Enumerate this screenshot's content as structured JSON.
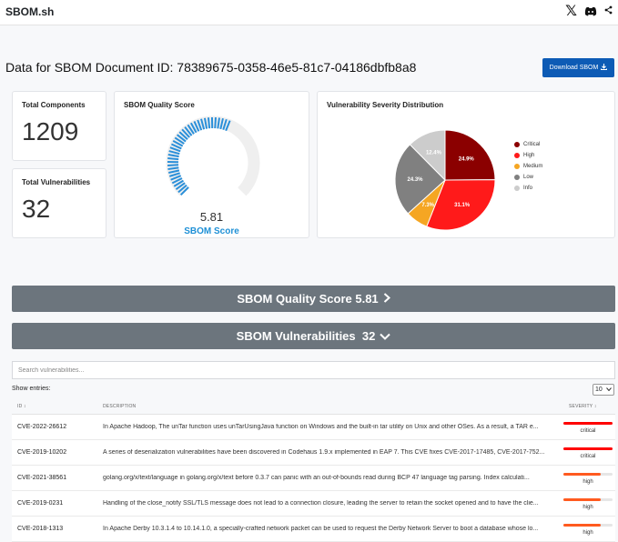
{
  "app": {
    "brand": "SBOM.sh"
  },
  "header": {
    "icons": [
      "x-logo-icon",
      "discord-icon",
      "share-icon"
    ]
  },
  "page": {
    "title": "Data for SBOM Document ID: 78389675-0358-46e5-81c7-04186dbfb8a8",
    "download_label": "Download SBOM"
  },
  "stats": {
    "total_components_label": "Total Components",
    "total_components": "1209",
    "total_vulns_label": "Total Vulnerabilities",
    "total_vulns": "32"
  },
  "quality": {
    "title": "SBOM Quality Score",
    "score": "5.81",
    "score_label": "SBOM Score",
    "score_value": 5.81,
    "max": 10,
    "color": "#2a8fd9"
  },
  "chart_data": {
    "type": "pie",
    "title": "Vulnerability Severity Distribution",
    "categories": [
      "Critical",
      "High",
      "Medium",
      "Low",
      "Info"
    ],
    "values": [
      24.9,
      31.1,
      7.3,
      24.3,
      12.4
    ],
    "labels": [
      "24.9%",
      "31.1%",
      "7.3%",
      "24.3%",
      "12.4%"
    ],
    "colors": [
      "#8b0000",
      "#ff1a1a",
      "#f5a623",
      "#808080",
      "#cccccc"
    ],
    "legend_position": "right"
  },
  "banners": {
    "quality": "SBOM Quality Score 5.81",
    "vulns": "SBOM Vulnerabilities  32"
  },
  "table": {
    "search_placeholder": "Search vulnerabilities...",
    "show_entries": "Show entries:",
    "entries_value": "10",
    "headers": {
      "id": "ID ↕",
      "description": "DESCRIPTION",
      "severity": "SEVERITY ↕"
    },
    "rows": [
      {
        "id": "CVE-2022-26612",
        "description": "In Apache Hadoop, The unTar function uses unTarUsingJava function on Windows and the built-in tar utility on Unix and other OSes. As a result, a TAR e...",
        "severity": "critical",
        "level": 1.0,
        "color": "#ff0000"
      },
      {
        "id": "CVE-2019-10202",
        "description": "A series of deserialization vulnerabilities have been discovered in Codehaus 1.9.x implemented in EAP 7. This CVE fixes CVE-2017-17485, CVE-2017-752...",
        "severity": "critical",
        "level": 1.0,
        "color": "#ff0000"
      },
      {
        "id": "CVE-2021-38561",
        "description": "golang.org/x/text/language in golang.org/x/text before 0.3.7 can panic with an out-of-bounds read during BCP 47 language tag parsing. Index calculati...",
        "severity": "high",
        "level": 0.75,
        "color": "#ff5a1f"
      },
      {
        "id": "CVE-2019-0231",
        "description": "Handling of the close_notify SSL/TLS message does not lead to a connection closure, leading the server to retain the socket opened and to have the clie...",
        "severity": "high",
        "level": 0.75,
        "color": "#ff5a1f"
      },
      {
        "id": "CVE-2018-1313",
        "description": "In Apache Derby 10.3.1.4 to 10.14.1.0, a specially-crafted network packet can be used to request the Derby Network Server to boot a database whose lo...",
        "severity": "high",
        "level": 0.75,
        "color": "#ff5a1f"
      }
    ]
  }
}
